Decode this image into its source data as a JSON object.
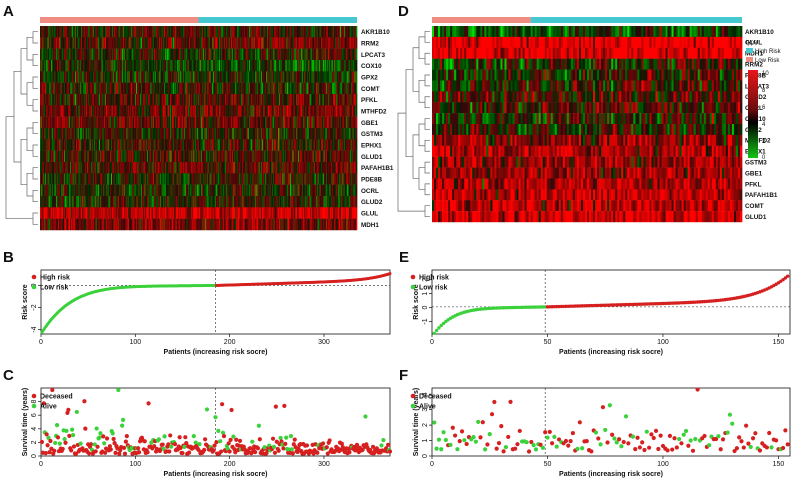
{
  "panel_labels": {
    "A": "A",
    "B": "B",
    "C": "C",
    "D": "D",
    "E": "E",
    "F": "F"
  },
  "colors": {
    "high": "#45c8d0",
    "low": "#f08c82",
    "red": "#d62020",
    "green": "#3ad13a"
  },
  "chart_data": [
    {
      "id": "A",
      "type": "heatmap",
      "genes": [
        "AKR1B10",
        "RRM2",
        "LPCAT3",
        "COX10",
        "GPX2",
        "COMT",
        "PFKL",
        "MTHFD2",
        "GBE1",
        "GSTM3",
        "EPHX1",
        "GLUD1",
        "PAFAH1B1",
        "PDE8B",
        "OCRL",
        "GLUD2",
        "GLUL",
        "MDH1"
      ],
      "groups": {
        "low_risk_samples": 185,
        "high_risk_samples": 185
      },
      "color_scale": [
        "green",
        "black",
        "red"
      ]
    },
    {
      "id": "D",
      "type": "heatmap",
      "genes": [
        "AKR1B10",
        "GLUL",
        "MDH1",
        "RRM2",
        "PDE8B",
        "LPCAT3",
        "GLUD2",
        "OCRL",
        "COX10",
        "GPX2",
        "MTHFD2",
        "EPHX1",
        "GSTM3",
        "GBE1",
        "PFKL",
        "PAFAH1B1",
        "COMT",
        "GLUD1"
      ],
      "groups": {
        "low_risk_samples": 49,
        "high_risk_samples": 105
      },
      "legend_title": "type",
      "legend_entries": [
        "High Risk",
        "Low Risk"
      ],
      "colorbar_ticks": [
        "10",
        "8",
        "6",
        "4",
        "2",
        "0"
      ]
    },
    {
      "id": "B",
      "type": "scatter",
      "xlabel": "Patients (increasing risk socre)",
      "ylabel": "Risk score",
      "xlim": [
        0,
        370
      ],
      "ylim": [
        -4.4,
        1.4
      ],
      "xticks": [
        "0",
        "100",
        "200",
        "300"
      ],
      "yticks": [
        "-4",
        "-2",
        "0"
      ],
      "cutoff_index": 185,
      "cutoff_value": 0,
      "n": 370,
      "legend": [
        "High risk",
        "Low  risk"
      ]
    },
    {
      "id": "E",
      "type": "scatter",
      "xlabel": "Patients (increasing risk socre)",
      "ylabel": "Risk score",
      "xlim": [
        0,
        155
      ],
      "ylim": [
        -1.9,
        2.7
      ],
      "xticks": [
        "0",
        "50",
        "100",
        "150"
      ],
      "yticks": [
        "-1",
        "0",
        "1",
        "2"
      ],
      "cutoff_index": 49,
      "cutoff_value": 0.05,
      "n": 154,
      "legend": [
        "High risk",
        "Low   risk"
      ]
    },
    {
      "id": "C",
      "type": "scatter",
      "xlabel": "Patients (increasing risk socre)",
      "ylabel": "Survival time (years)",
      "xlim": [
        0,
        370
      ],
      "ylim": [
        0,
        10
      ],
      "xticks": [
        "0",
        "100",
        "200",
        "300"
      ],
      "yticks": [
        "0",
        "2",
        "4",
        "6",
        "8"
      ],
      "cutoff_index": 185,
      "n": 370,
      "legend": [
        "Deceased",
        "Alive"
      ]
    },
    {
      "id": "F",
      "type": "scatter",
      "xlabel": "Patients (increasing risk socre)",
      "ylabel": "Survival time (years)",
      "xlim": [
        0,
        155
      ],
      "ylim": [
        0,
        4.4
      ],
      "xticks": [
        "0",
        "50",
        "100",
        "150"
      ],
      "yticks": [
        "0",
        "1",
        "2",
        "3",
        "4"
      ],
      "cutoff_index": 49,
      "n": 154,
      "legend": [
        "Deceased",
        "Alive"
      ]
    }
  ]
}
